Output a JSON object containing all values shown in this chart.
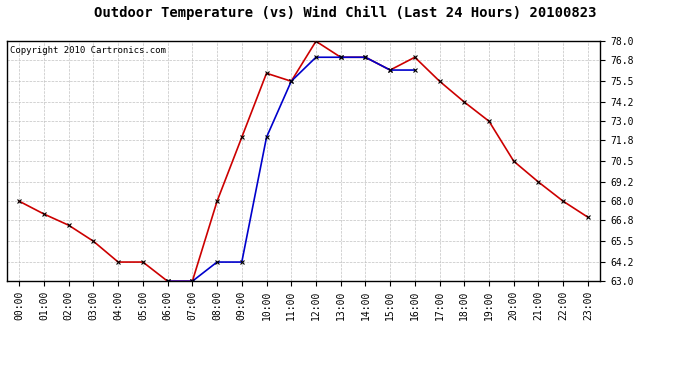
{
  "title": "Outdoor Temperature (vs) Wind Chill (Last 24 Hours) 20100823",
  "copyright": "Copyright 2010 Cartronics.com",
  "x_labels": [
    "00:00",
    "01:00",
    "02:00",
    "03:00",
    "04:00",
    "05:00",
    "06:00",
    "07:00",
    "08:00",
    "09:00",
    "10:00",
    "11:00",
    "12:00",
    "13:00",
    "14:00",
    "15:00",
    "16:00",
    "17:00",
    "18:00",
    "19:00",
    "20:00",
    "21:00",
    "22:00",
    "23:00"
  ],
  "temp": [
    68.0,
    67.2,
    66.5,
    65.5,
    64.2,
    64.2,
    63.0,
    63.0,
    68.0,
    72.0,
    76.0,
    75.5,
    78.0,
    77.0,
    77.0,
    76.2,
    77.0,
    75.5,
    74.2,
    73.0,
    70.5,
    69.2,
    68.0,
    67.0
  ],
  "windchill": [
    null,
    null,
    null,
    null,
    null,
    null,
    63.0,
    63.0,
    64.2,
    64.2,
    72.0,
    75.5,
    77.0,
    77.0,
    77.0,
    76.2,
    76.2,
    null,
    null,
    null,
    null,
    null,
    null,
    null
  ],
  "temp_color": "#cc0000",
  "windchill_color": "#0000cc",
  "marker": "x",
  "marker_color": "#000000",
  "ylim": [
    63.0,
    78.0
  ],
  "yticks": [
    63.0,
    64.2,
    65.5,
    66.8,
    68.0,
    69.2,
    70.5,
    71.8,
    73.0,
    74.2,
    75.5,
    76.8,
    78.0
  ],
  "grid_color": "#bbbbbb",
  "bg_color": "#ffffff",
  "plot_bg_color": "#ffffff",
  "title_fontsize": 10,
  "copyright_fontsize": 6.5,
  "tick_fontsize": 7
}
